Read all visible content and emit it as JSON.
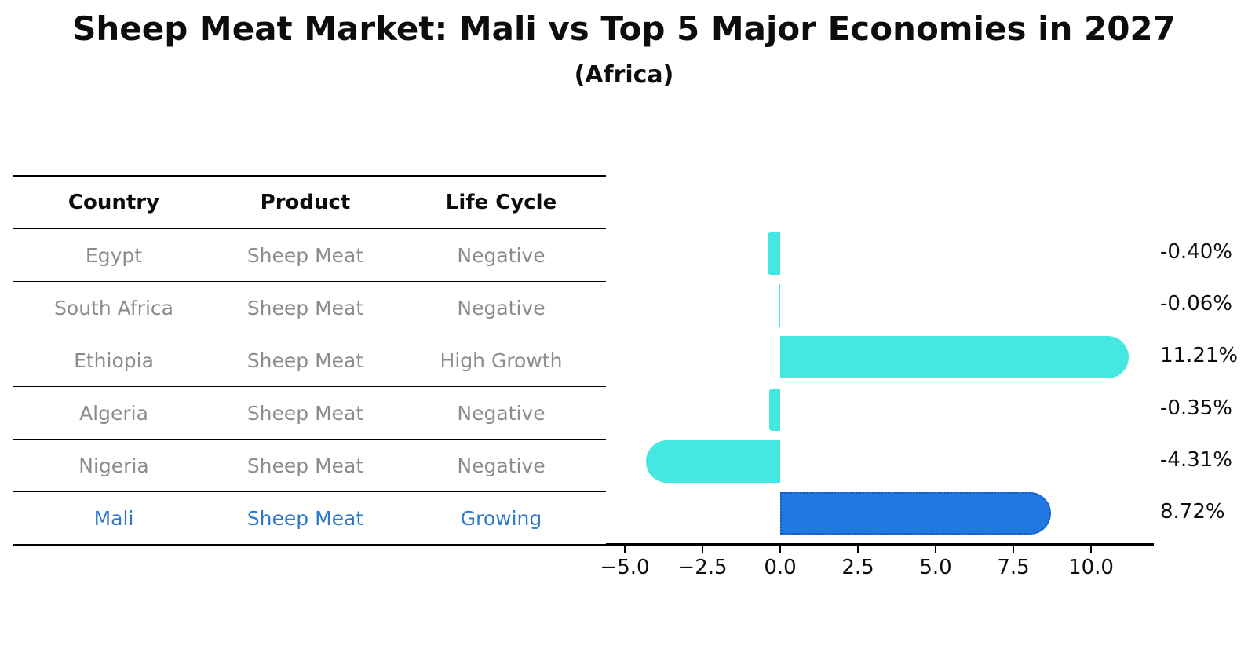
{
  "title": "Sheep Meat Market: Mali vs Top 5 Major Economies in 2027",
  "subtitle": "(Africa)",
  "table": {
    "headers": [
      "Country",
      "Product",
      "Life Cycle"
    ],
    "rows": [
      {
        "country": "Egypt",
        "product": "Sheep Meat",
        "life_cycle": "Negative",
        "highlight": false
      },
      {
        "country": "South Africa",
        "product": "Sheep Meat",
        "life_cycle": "Negative",
        "highlight": false
      },
      {
        "country": "Ethiopia",
        "product": "Sheep Meat",
        "life_cycle": "High Growth",
        "highlight": false
      },
      {
        "country": "Algeria",
        "product": "Sheep Meat",
        "life_cycle": "Negative",
        "highlight": false
      },
      {
        "country": "Nigeria",
        "product": "Sheep Meat",
        "life_cycle": "Negative",
        "highlight": false
      },
      {
        "country": "Mali",
        "product": "Sheep Meat",
        "life_cycle": "Growing",
        "highlight": true
      }
    ]
  },
  "chart_data": {
    "type": "bar",
    "orientation": "horizontal",
    "title": "Sheep Meat Market: Mali vs Top 5 Major Economies in 2027",
    "subtitle": "(Africa)",
    "categories": [
      "Egypt",
      "South Africa",
      "Ethiopia",
      "Algeria",
      "Nigeria",
      "Mali"
    ],
    "values": [
      -0.4,
      -0.06,
      11.21,
      -0.35,
      -4.31,
      8.72
    ],
    "value_labels": [
      "-0.40%",
      "-0.06%",
      "11.21%",
      "-0.35%",
      "-4.31%",
      "8.72%"
    ],
    "highlight_index": 5,
    "x_ticks": [
      "−5.0",
      "−2.5",
      "0.0",
      "2.5",
      "5.0",
      "7.5",
      "10.0"
    ],
    "x_tick_values": [
      -5.0,
      -2.5,
      0.0,
      2.5,
      5.0,
      7.5,
      10.0
    ],
    "xlim": [
      -5.6,
      12.0
    ],
    "grid": false,
    "legend": "none",
    "colors": {
      "bar_color": "#45e8e1",
      "highlight_bar_color": "#2078e0",
      "highlight_bar_border_color": "#1456bc",
      "highlight_text_color": "#2e79cc",
      "table_text_color": "#8c8c8c",
      "axis_color": "#000000"
    }
  }
}
